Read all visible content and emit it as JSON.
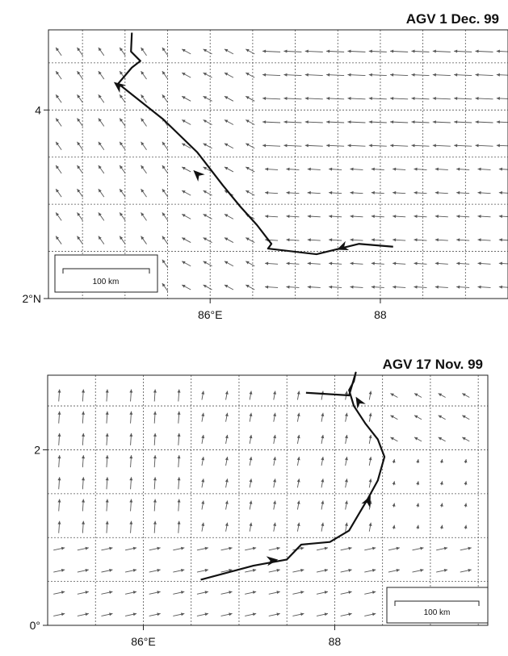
{
  "panels": [
    {
      "id": "dec1",
      "title": "AGV 1 Dec. 99",
      "lon_range": [
        84.1,
        89.5
      ],
      "lat_range": [
        2.0,
        4.85
      ],
      "grid_dlon": 0.5,
      "grid_dlat": 0.5,
      "x_ticks": [
        {
          "value": 86,
          "label": "86°E"
        },
        {
          "value": 88,
          "label": "88"
        }
      ],
      "y_ticks": [
        {
          "value": 2,
          "label": "2°N"
        },
        {
          "value": 4,
          "label": "4"
        }
      ],
      "scale_label": "100 km",
      "scale_length_deg": 0.9,
      "track": [
        [
          85.08,
          4.82
        ],
        [
          85.07,
          4.62
        ],
        [
          85.18,
          4.52
        ],
        [
          85.08,
          4.45
        ],
        [
          84.92,
          4.28
        ],
        [
          85.45,
          3.9
        ],
        [
          85.85,
          3.55
        ],
        [
          86.15,
          3.2
        ],
        [
          86.35,
          2.98
        ],
        [
          86.55,
          2.78
        ],
        [
          86.72,
          2.58
        ],
        [
          86.68,
          2.53
        ],
        [
          87.25,
          2.47
        ],
        [
          87.75,
          2.58
        ],
        [
          88.15,
          2.55
        ]
      ],
      "track_arrows": [
        {
          "at": [
            84.92,
            4.26
          ],
          "toward": [
            84.82,
            4.33
          ]
        },
        {
          "at": [
            85.85,
            3.32
          ],
          "toward": [
            85.7,
            3.45
          ]
        },
        {
          "at": [
            87.55,
            2.54
          ],
          "toward": [
            87.38,
            2.48
          ]
        }
      ],
      "wind_description": "regular grid of wind vectors: north-westward on the west side, westward in the central and eastern part"
    },
    {
      "id": "nov17",
      "title": "AGV 17 Nov. 99",
      "lon_range": [
        85.0,
        89.6
      ],
      "lat_range": [
        0.0,
        2.85
      ],
      "grid_dlon": 0.5,
      "grid_dlat": 0.5,
      "x_ticks": [
        {
          "value": 86,
          "label": "86°E"
        },
        {
          "value": 88,
          "label": "88"
        }
      ],
      "y_ticks": [
        {
          "value": 0,
          "label": "0°"
        },
        {
          "value": 2,
          "label": "2"
        }
      ],
      "scale_label": "100 km",
      "scale_length_deg": 0.85,
      "track": [
        [
          86.6,
          0.52
        ],
        [
          87.15,
          0.68
        ],
        [
          87.5,
          0.75
        ],
        [
          87.65,
          0.92
        ],
        [
          87.95,
          0.95
        ],
        [
          88.15,
          1.08
        ],
        [
          88.35,
          1.45
        ],
        [
          88.45,
          1.65
        ],
        [
          88.52,
          1.92
        ],
        [
          88.45,
          2.12
        ],
        [
          88.32,
          2.3
        ],
        [
          88.2,
          2.5
        ],
        [
          88.15,
          2.68
        ],
        [
          88.2,
          2.78
        ],
        [
          88.22,
          2.88
        ],
        [
          88.15,
          2.62
        ],
        [
          87.7,
          2.65
        ]
      ],
      "track_arrows": [
        {
          "at": [
            87.35,
            0.74
          ],
          "toward": [
            87.5,
            0.76
          ]
        },
        {
          "at": [
            88.35,
            1.42
          ],
          "toward": [
            88.42,
            1.58
          ]
        },
        {
          "at": [
            88.25,
            2.55
          ],
          "toward": [
            88.18,
            2.68
          ]
        }
      ],
      "wind_description": "regular grid of wind vectors: northward on the west side, eastward in the south, weak to north-westward in the east"
    }
  ]
}
